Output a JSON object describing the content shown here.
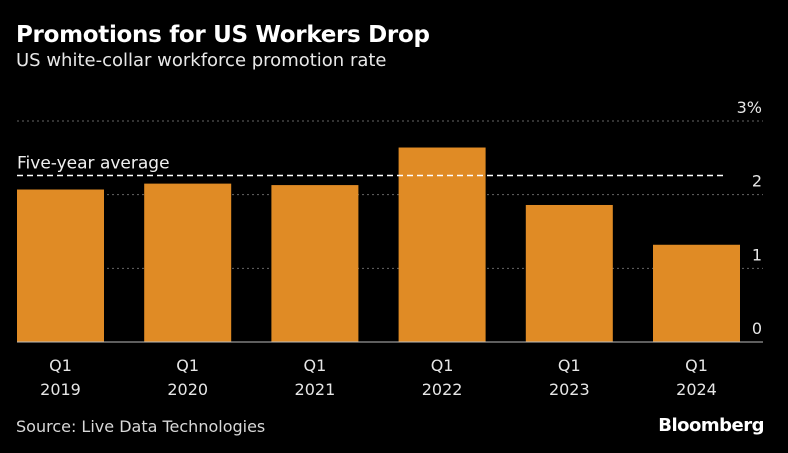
{
  "header": {
    "title": "Promotions for US Workers Drop",
    "subtitle": "US white-collar workforce promotion rate"
  },
  "footer": {
    "source": "Source: Live Data Technologies",
    "brand": "Bloomberg"
  },
  "colors": {
    "bar": "#e08b25",
    "background": "#000000",
    "grid": "#666666",
    "average_line": "#ffffff"
  },
  "chart_data": {
    "type": "bar",
    "categories": [
      [
        "Q1",
        "2019"
      ],
      [
        "Q1",
        "2020"
      ],
      [
        "Q1",
        "2021"
      ],
      [
        "Q1",
        "2022"
      ],
      [
        "Q1",
        "2023"
      ],
      [
        "Q1",
        "2024"
      ]
    ],
    "values": [
      2.07,
      2.15,
      2.13,
      2.64,
      1.86,
      1.32
    ],
    "ylim": [
      0,
      3
    ],
    "yticks": [
      0,
      1,
      2,
      3
    ],
    "ytick_labels": [
      "0",
      "1",
      "2",
      "3%"
    ],
    "y_axis_position": "right",
    "grid": true,
    "reference_line": {
      "label": "Five-year average",
      "value": 2.26,
      "style": "dashed"
    }
  }
}
